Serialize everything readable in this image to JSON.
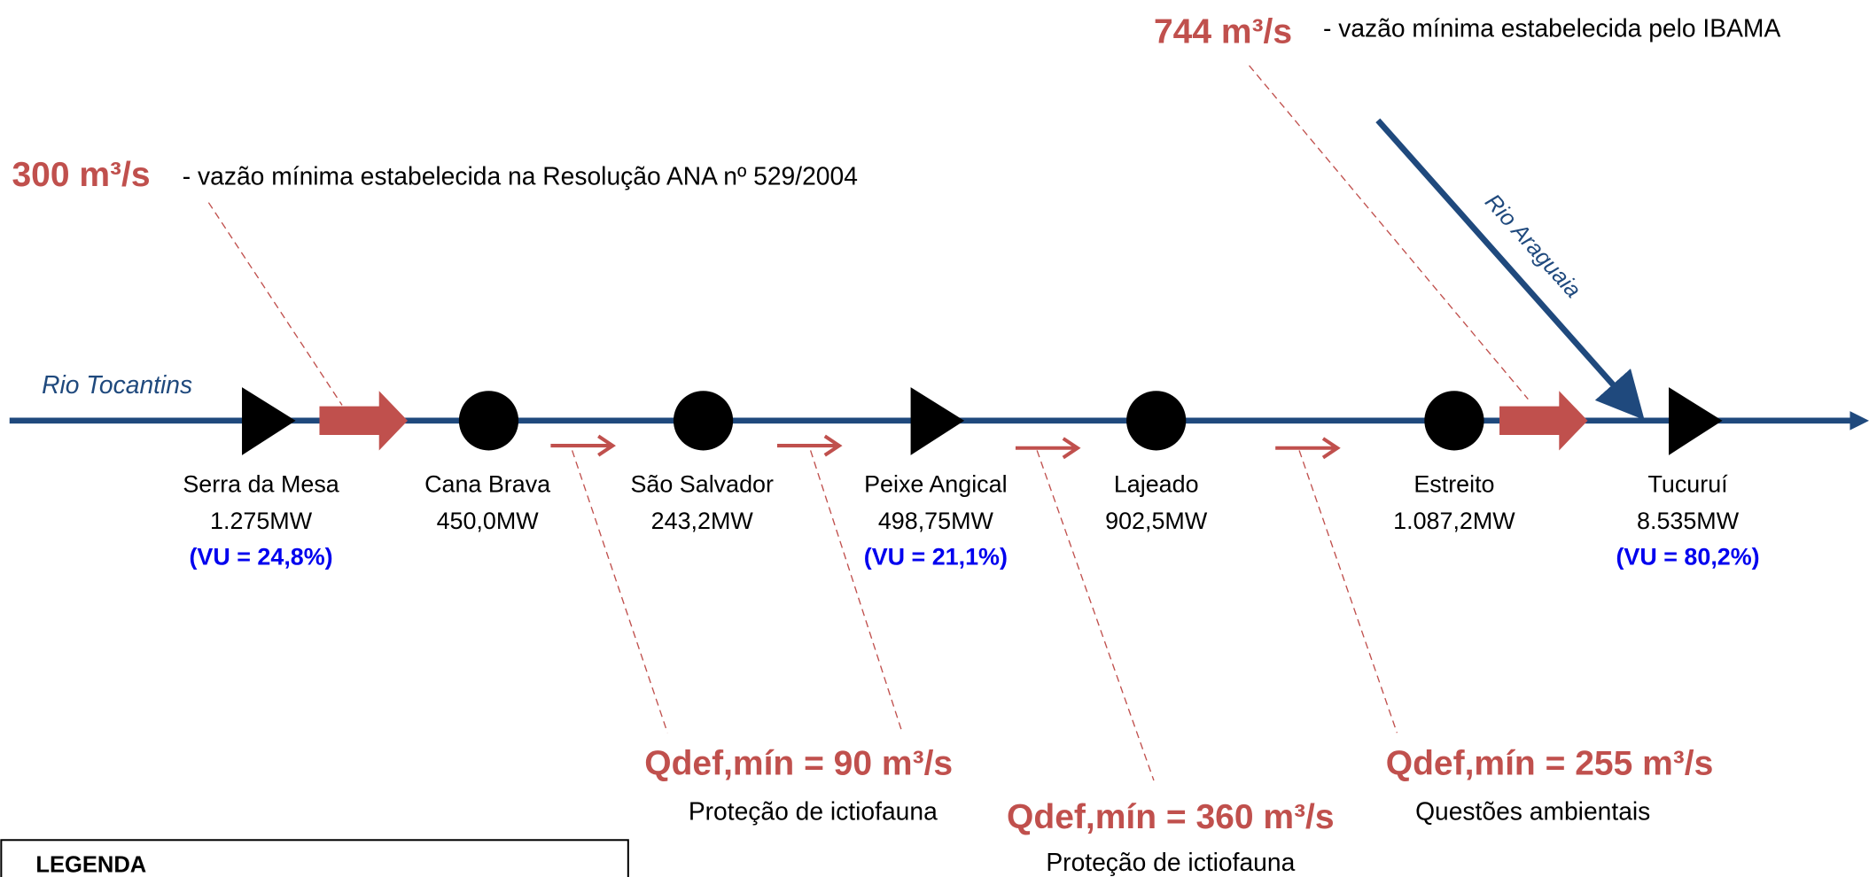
{
  "top_flow": {
    "value": "744 m³/s",
    "description": "- vazão mínima estabelecida pelo IBAMA"
  },
  "left_flow": {
    "value": "300 m³/s",
    "description": "- vazão mínima estabelecida na Resolução ANA nº 529/2004"
  },
  "rivers": {
    "main": "Rio Tocantins",
    "tributary": "Rio Araguaia"
  },
  "plants": [
    {
      "name": "Serra da Mesa",
      "capacity": "1.275MW",
      "vu": "(VU = 24,8%)"
    },
    {
      "name": "Cana Brava",
      "capacity": "450,0MW"
    },
    {
      "name": "São Salvador",
      "capacity": "243,2MW"
    },
    {
      "name": "Peixe Angical",
      "capacity": "498,75MW",
      "vu": "(VU = 21,1%)"
    },
    {
      "name": "Lajeado",
      "capacity": "902,5MW"
    },
    {
      "name": "Estreito",
      "capacity": "1.087,2MW"
    },
    {
      "name": "Tucuruí",
      "capacity": "8.535MW",
      "vu": "(VU = 80,2%)"
    }
  ],
  "constraints": [
    {
      "flow": "Qdef,mín = 90 m³/s",
      "reason": "Proteção de ictiofauna"
    },
    {
      "flow": "Qdef,mín = 360 m³/s",
      "reason": "Proteção de ictiofauna"
    },
    {
      "flow": "Qdef,mín = 255 m³/s",
      "reason": "Questões ambientais"
    }
  ],
  "legend": {
    "title": "LEGENDA"
  }
}
